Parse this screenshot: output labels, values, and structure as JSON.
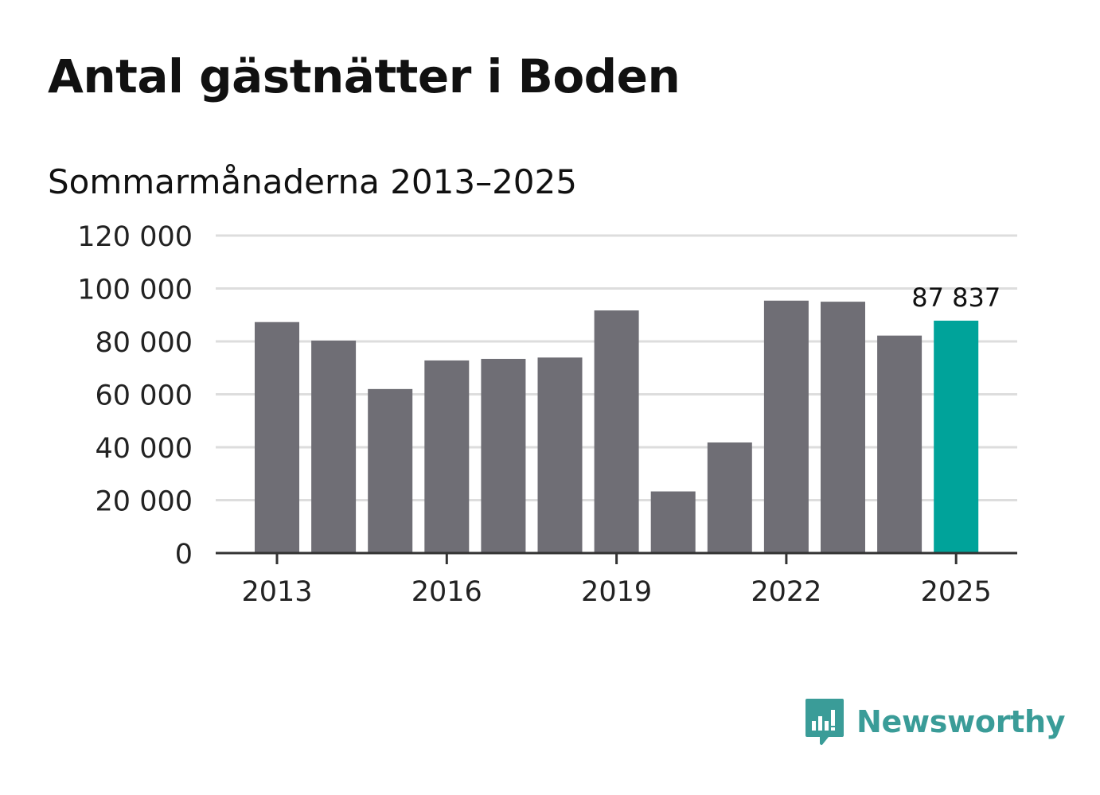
{
  "header": {
    "title": "Antal gästnätter i Boden",
    "subtitle": "Sommarmånaderna 2013–2025"
  },
  "chart_data": {
    "type": "bar",
    "categories": [
      "2013",
      "2014",
      "2015",
      "2016",
      "2017",
      "2018",
      "2019",
      "2020",
      "2021",
      "2022",
      "2023",
      "2024",
      "2025"
    ],
    "x_tick_labels": [
      "2013",
      "2016",
      "2019",
      "2022",
      "2025"
    ],
    "values": [
      87300,
      80300,
      62000,
      72800,
      73400,
      73900,
      91700,
      23300,
      41800,
      95400,
      95000,
      82200,
      87837
    ],
    "ylim": [
      0,
      120000
    ],
    "y_ticks": [
      0,
      20000,
      40000,
      60000,
      80000,
      100000,
      120000
    ],
    "y_tick_labels": [
      "0",
      "20 000",
      "40 000",
      "60 000",
      "80 000",
      "100 000",
      "120 000"
    ],
    "highlight_index": 12,
    "highlight_label": "87 837",
    "grid": true,
    "colors": {
      "bar": "#6f6e75",
      "highlight": "#00a39a",
      "grid": "#dddddd",
      "axis": "#333333"
    }
  },
  "brand": {
    "name": "Newsworthy",
    "icon": "newsworthy-logo-icon",
    "color": "#3a9c98"
  }
}
